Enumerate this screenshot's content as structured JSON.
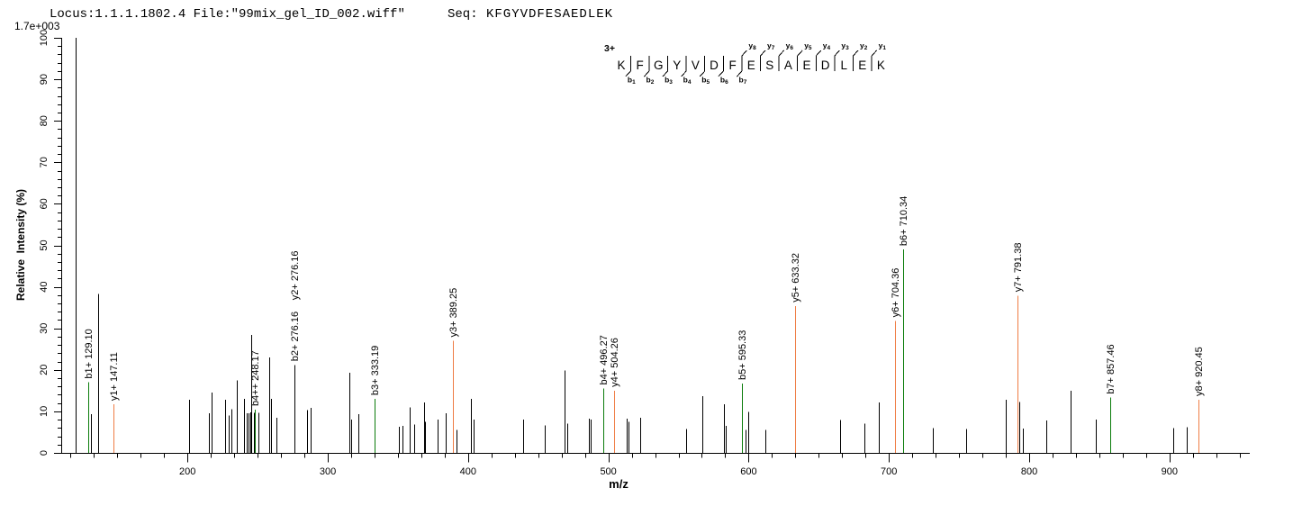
{
  "header": {
    "locus_file": "Locus:1.1.1.1802.4 File:\"99mix_gel_ID_002.wiff\"",
    "seq_label": "Seq:",
    "seq_value": "KFGYVDFESAEDLEK",
    "max_intensity": "1.7e+003"
  },
  "colors": {
    "header_blue": "#2222CC",
    "b_ion_green": "#0A7C0A",
    "y_ion_orange": "#EF7D45",
    "peak_black": "#000000"
  },
  "sequence_diagram": {
    "charge": "3+",
    "residues": [
      "K",
      "F",
      "G",
      "Y",
      "V",
      "D",
      "F",
      "E",
      "S",
      "A",
      "E",
      "D",
      "L",
      "E",
      "K"
    ],
    "b_ions": [
      "b1",
      "b2",
      "b3",
      "b4",
      "b5",
      "b6",
      "b7"
    ],
    "y_ions": [
      "y8",
      "y7",
      "y6",
      "y5",
      "y4",
      "y3",
      "y2",
      "y1"
    ]
  },
  "chart_data": {
    "type": "bar",
    "subtype": "centroided MS/MS stick spectrum",
    "title": "",
    "xlabel": "m/z",
    "ylabel": "Relative  Intensity (%)",
    "x_range": [
      110,
      956
    ],
    "y_range": [
      0,
      100
    ],
    "x_major_ticks": [
      200,
      300,
      400,
      500,
      600,
      700,
      800,
      900
    ],
    "y_major_ticks": [
      0,
      10,
      20,
      30,
      40,
      50,
      60,
      70,
      80,
      90,
      100
    ],
    "x_minor_divisions": 6,
    "y_minor_step": 2,
    "grid": false,
    "legend": false,
    "peaks": [
      {
        "mz": 120.0,
        "pct": 100.0
      },
      {
        "mz": 129.1,
        "pct": 17.0,
        "ion": "b",
        "label": "b1+ 129.10"
      },
      {
        "mz": 131.0,
        "pct": 9.3
      },
      {
        "mz": 136.1,
        "pct": 38.3
      },
      {
        "mz": 147.11,
        "pct": 11.7,
        "ion": "y",
        "label": "y1+ 147.11"
      },
      {
        "mz": 201.3,
        "pct": 12.8
      },
      {
        "mz": 215.2,
        "pct": 9.5
      },
      {
        "mz": 216.9,
        "pct": 14.5
      },
      {
        "mz": 226.5,
        "pct": 12.8
      },
      {
        "mz": 229.3,
        "pct": 9.0
      },
      {
        "mz": 231.4,
        "pct": 10.5
      },
      {
        "mz": 235.3,
        "pct": 17.5
      },
      {
        "mz": 240.4,
        "pct": 13.0
      },
      {
        "mz": 242.5,
        "pct": 9.5
      },
      {
        "mz": 243.7,
        "pct": 9.5
      },
      {
        "mz": 244.8,
        "pct": 9.8
      },
      {
        "mz": 245.6,
        "pct": 28.4
      },
      {
        "mz": 247.3,
        "pct": 9.7
      },
      {
        "mz": 248.17,
        "pct": 10.4,
        "ion": "b",
        "label": "b4++ 248.17"
      },
      {
        "mz": 250.4,
        "pct": 9.7
      },
      {
        "mz": 258.0,
        "pct": 23.0
      },
      {
        "mz": 259.7,
        "pct": 13.0
      },
      {
        "mz": 263.1,
        "pct": 8.5
      },
      {
        "mz": 276.16,
        "pct": 21.2,
        "labels": [
          {
            "text": "b2+ 276.16",
            "ion": "b"
          },
          {
            "text": "y2+ 276.16",
            "ion": "y"
          }
        ]
      },
      {
        "mz": 285.4,
        "pct": 10.3
      },
      {
        "mz": 287.9,
        "pct": 10.8
      },
      {
        "mz": 315.3,
        "pct": 19.3
      },
      {
        "mz": 316.4,
        "pct": 8.0
      },
      {
        "mz": 322.1,
        "pct": 9.3
      },
      {
        "mz": 333.19,
        "pct": 13.0,
        "ion": "b",
        "label": "b3+ 333.19"
      },
      {
        "mz": 350.4,
        "pct": 6.3
      },
      {
        "mz": 353.2,
        "pct": 6.5
      },
      {
        "mz": 358.1,
        "pct": 11.0
      },
      {
        "mz": 361.3,
        "pct": 6.8
      },
      {
        "mz": 368.4,
        "pct": 12.2
      },
      {
        "mz": 369.6,
        "pct": 7.5
      },
      {
        "mz": 378.4,
        "pct": 8.0
      },
      {
        "mz": 383.8,
        "pct": 9.5
      },
      {
        "mz": 389.25,
        "pct": 27.0,
        "ion": "y",
        "label": "y3+ 389.25"
      },
      {
        "mz": 391.9,
        "pct": 5.5
      },
      {
        "mz": 402.0,
        "pct": 13.0
      },
      {
        "mz": 404.1,
        "pct": 8.0
      },
      {
        "mz": 439.0,
        "pct": 8.0
      },
      {
        "mz": 454.8,
        "pct": 6.6
      },
      {
        "mz": 468.5,
        "pct": 19.8
      },
      {
        "mz": 470.7,
        "pct": 7.0
      },
      {
        "mz": 486.3,
        "pct": 8.2
      },
      {
        "mz": 487.6,
        "pct": 8.0
      },
      {
        "mz": 496.27,
        "pct": 15.5,
        "ion": "b",
        "label": "b4+ 496.27"
      },
      {
        "mz": 504.26,
        "pct": 15.0,
        "ion": "y",
        "label": "y4+ 504.26"
      },
      {
        "mz": 513.0,
        "pct": 8.2
      },
      {
        "mz": 514.2,
        "pct": 7.5
      },
      {
        "mz": 522.8,
        "pct": 8.5
      },
      {
        "mz": 555.6,
        "pct": 5.8
      },
      {
        "mz": 567.3,
        "pct": 13.7
      },
      {
        "mz": 582.3,
        "pct": 11.7
      },
      {
        "mz": 583.6,
        "pct": 6.5
      },
      {
        "mz": 595.33,
        "pct": 16.7,
        "ion": "b",
        "label": "b5+ 595.33"
      },
      {
        "mz": 597.7,
        "pct": 5.5
      },
      {
        "mz": 599.6,
        "pct": 9.9
      },
      {
        "mz": 612.2,
        "pct": 5.5
      },
      {
        "mz": 633.32,
        "pct": 35.4,
        "ion": "y",
        "label": "y5+ 633.32"
      },
      {
        "mz": 664.9,
        "pct": 7.9
      },
      {
        "mz": 682.5,
        "pct": 7.0
      },
      {
        "mz": 692.5,
        "pct": 12.1
      },
      {
        "mz": 704.36,
        "pct": 31.8,
        "ion": "y",
        "label": "y6+ 704.36"
      },
      {
        "mz": 710.34,
        "pct": 49.0,
        "ion": "b",
        "label": "b6+ 710.34"
      },
      {
        "mz": 731.0,
        "pct": 6.0
      },
      {
        "mz": 755.0,
        "pct": 5.8
      },
      {
        "mz": 783.6,
        "pct": 12.8
      },
      {
        "mz": 791.38,
        "pct": 37.9,
        "ion": "y",
        "label": "y7+ 791.38"
      },
      {
        "mz": 793.2,
        "pct": 12.3
      },
      {
        "mz": 795.4,
        "pct": 5.9
      },
      {
        "mz": 812.3,
        "pct": 7.8
      },
      {
        "mz": 829.8,
        "pct": 15.0
      },
      {
        "mz": 847.8,
        "pct": 8.0
      },
      {
        "mz": 857.46,
        "pct": 13.3,
        "ion": "b",
        "label": "b7+ 857.46"
      },
      {
        "mz": 903.0,
        "pct": 6.0
      },
      {
        "mz": 912.3,
        "pct": 6.2
      },
      {
        "mz": 920.45,
        "pct": 12.8,
        "ion": "y",
        "label": "y8+ 920.45"
      }
    ]
  }
}
